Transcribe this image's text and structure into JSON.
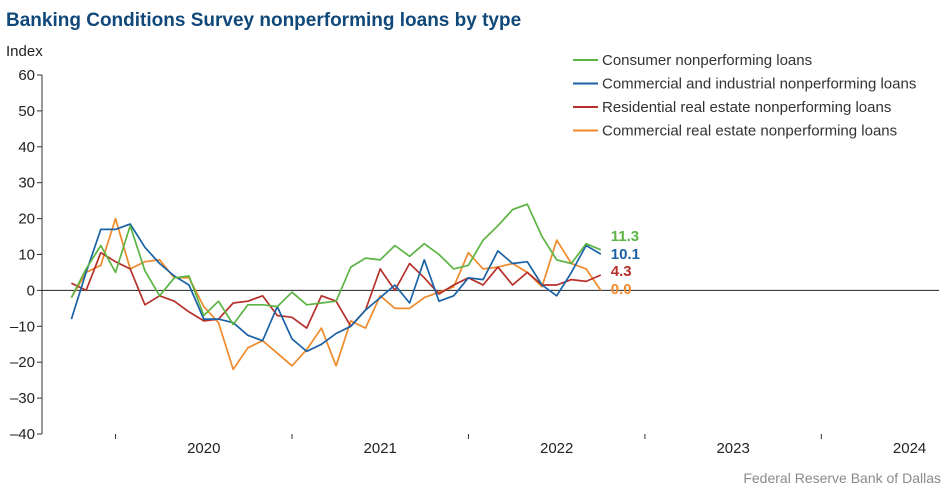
{
  "chart_data": {
    "type": "line",
    "title": "Banking Conditions Survey nonperforming loans by type",
    "ylabel": "Index",
    "ylim": [
      -40,
      60
    ],
    "yticks": [
      60,
      50,
      40,
      30,
      20,
      10,
      0,
      -10,
      -20,
      -30,
      -40
    ],
    "ytick_labels": [
      "60",
      "50",
      "40",
      "30",
      "20",
      "10",
      "0",
      "–10",
      "–20",
      "–30",
      "–40"
    ],
    "xticks": [
      "2020",
      "2021",
      "2022",
      "2023",
      "2024"
    ],
    "x_range": [
      "2019-08",
      "2024-09"
    ],
    "grid": false,
    "legend_position": "top-right",
    "x": [
      "2019-10",
      "2019-11",
      "2019-12",
      "2020-01",
      "2020-02",
      "2020-03",
      "2020-04",
      "2020-05",
      "2020-06",
      "2020-07",
      "2020-08",
      "2020-09",
      "2020-10",
      "2020-11",
      "2020-12",
      "2021-01",
      "2021-02",
      "2021-03",
      "2021-04",
      "2021-05",
      "2021-06",
      "2021-07",
      "2021-08",
      "2021-09",
      "2021-10",
      "2021-11",
      "2021-12",
      "2022-01",
      "2022-02",
      "2022-03",
      "2022-04",
      "2022-05",
      "2022-06",
      "2022-07",
      "2022-08",
      "2022-09",
      "2022-10",
      "2022-11",
      "2022-12",
      "2023-01",
      "2023-02",
      "2023-03",
      "2023-04",
      "2023-05",
      "2023-06",
      "2023-07",
      "2023-08",
      "2023-09",
      "2023-10",
      "2023-11",
      "2023-12",
      "2024-01",
      "2024-02",
      "2024-03"
    ],
    "series": [
      {
        "name": "Consumer nonperforming loans",
        "color": "#5bb443",
        "end_label": "11.3",
        "values": [
          -2,
          6,
          12.5,
          5,
          18,
          5.5,
          -1.5,
          3.5,
          4,
          -7,
          -3,
          -9.5,
          -4,
          -4,
          -4.5,
          -0.5,
          -4,
          -3.5,
          -3,
          6.5,
          9,
          8.5,
          12.5,
          9.5,
          13,
          10,
          6,
          7,
          14,
          18,
          22.5,
          24,
          15,
          8.5,
          7.5,
          13,
          11.3,
          null,
          null,
          null,
          null,
          null,
          null,
          null,
          null,
          null,
          null,
          null,
          null,
          null,
          null,
          null,
          null,
          null
        ]
      },
      {
        "name": "Commercial and industrial nonperforming loans",
        "color": "#1a62a6",
        "end_label": "10.1",
        "values": [
          -8,
          5,
          17,
          17,
          18.5,
          12,
          7.5,
          4,
          1.5,
          -8,
          -8,
          -9,
          -12.5,
          -14,
          -4.5,
          -13.5,
          -17,
          -15,
          -12,
          -10,
          -5.5,
          -2,
          1.5,
          -3.5,
          8.5,
          -3,
          -1.5,
          3.5,
          3,
          11,
          7.5,
          8,
          1.5,
          -1.5,
          5,
          12.5,
          10.1,
          null,
          null,
          null,
          null,
          null,
          null,
          null,
          null,
          null,
          null,
          null,
          null,
          null,
          null,
          null,
          null,
          null
        ]
      },
      {
        "name": "Residential real estate nonperforming loans",
        "color": "#b5302a",
        "end_label": "4.3",
        "values": [
          2,
          0,
          10.5,
          8,
          6,
          -4,
          -1.5,
          -3,
          -6,
          -8.5,
          -8,
          -3.5,
          -3,
          -1.5,
          -7,
          -7.5,
          -10.5,
          -1.5,
          -3,
          -10,
          -5.5,
          6,
          0,
          7.5,
          3.5,
          -1,
          1.5,
          3.5,
          1.5,
          6.5,
          1.5,
          5,
          1.5,
          1.5,
          3,
          2.5,
          4.3,
          null,
          null,
          null,
          null,
          null,
          null,
          null,
          null,
          null,
          null,
          null,
          null,
          null,
          null,
          null,
          null,
          null
        ]
      },
      {
        "name": "Commercial real estate nonperforming loans",
        "color": "#f08a2b",
        "end_label": "0.0",
        "values": [
          -2,
          5,
          7,
          20,
          6,
          8,
          8.5,
          3.5,
          3.5,
          -4.5,
          -9,
          -22,
          -16,
          -14,
          -17.5,
          -21,
          -16.5,
          -10.5,
          -21,
          -8.5,
          -10.5,
          -1.5,
          -5,
          -5,
          -2,
          -0.5,
          1,
          10.5,
          6,
          6.5,
          7.5,
          5,
          1,
          14,
          7.5,
          6,
          0,
          null,
          null,
          null,
          null,
          null,
          null,
          null,
          null,
          null,
          null,
          null,
          null,
          null,
          null,
          null,
          null,
          null
        ]
      }
    ]
  },
  "source": "Federal Reserve Bank of Dallas"
}
